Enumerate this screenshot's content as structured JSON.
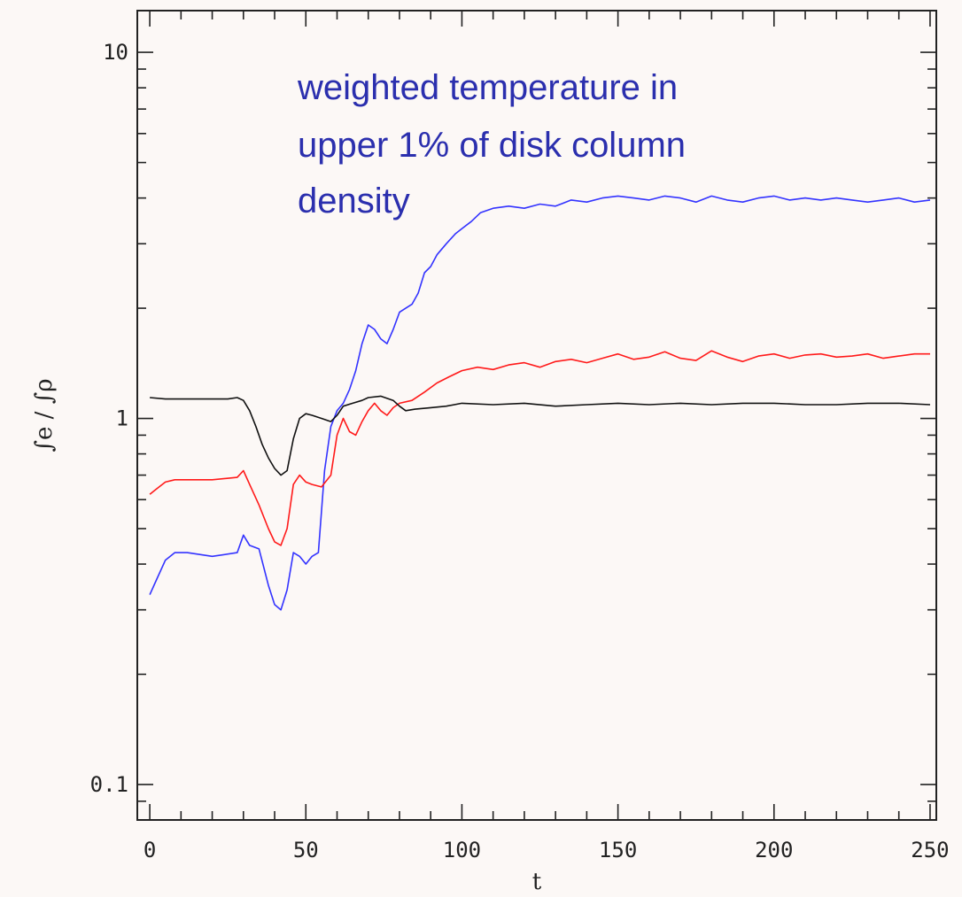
{
  "chart_data": {
    "type": "line",
    "title": "",
    "xlabel": "t",
    "ylabel": "∫e / ∫ρ",
    "xlim": [
      -4,
      252
    ],
    "ylim": [
      0.08,
      13
    ],
    "yscale": "log",
    "x_ticks": [
      0,
      50,
      100,
      150,
      200,
      250
    ],
    "x_tick_labels": [
      "0",
      "50",
      "100",
      "150",
      "200",
      "250"
    ],
    "y_ticks": [
      0.1,
      1,
      10
    ],
    "y_tick_labels": [
      "0.1",
      "1",
      "10"
    ],
    "grid": false,
    "annotation": [
      "weighted temperature in",
      "upper 1% of disk column",
      "density"
    ],
    "colors": {
      "blue": "#3333ff",
      "red": "#ff1a1a",
      "black": "#111111",
      "annotation": "#2b2fae",
      "background": "#fcf8f6"
    },
    "series": [
      {
        "color": "#3333ff",
        "x": [
          0,
          2,
          5,
          8,
          12,
          20,
          28,
          30,
          32,
          35,
          38,
          40,
          42,
          44,
          46,
          48,
          50,
          52,
          54,
          56,
          58,
          60,
          62,
          64,
          66,
          68,
          70,
          72,
          74,
          76,
          78,
          80,
          82,
          84,
          86,
          88,
          90,
          92,
          95,
          98,
          100,
          103,
          106,
          110,
          115,
          120,
          125,
          130,
          135,
          140,
          145,
          150,
          155,
          160,
          165,
          170,
          175,
          180,
          185,
          190,
          195,
          200,
          205,
          210,
          215,
          220,
          225,
          230,
          235,
          240,
          245,
          250
        ],
        "y": [
          0.33,
          0.36,
          0.41,
          0.43,
          0.43,
          0.42,
          0.43,
          0.48,
          0.45,
          0.44,
          0.35,
          0.31,
          0.3,
          0.34,
          0.43,
          0.42,
          0.4,
          0.42,
          0.43,
          0.72,
          0.95,
          1.05,
          1.1,
          1.2,
          1.35,
          1.6,
          1.8,
          1.75,
          1.65,
          1.6,
          1.75,
          1.95,
          2.0,
          2.05,
          2.2,
          2.5,
          2.6,
          2.8,
          3.0,
          3.2,
          3.3,
          3.45,
          3.65,
          3.75,
          3.8,
          3.75,
          3.85,
          3.8,
          3.95,
          3.9,
          4.0,
          4.05,
          4.0,
          3.95,
          4.05,
          4.0,
          3.9,
          4.05,
          3.95,
          3.9,
          4.0,
          4.05,
          3.95,
          4.0,
          3.95,
          4.0,
          3.95,
          3.9,
          3.95,
          4.0,
          3.9,
          3.95
        ]
      },
      {
        "color": "#ff1a1a",
        "x": [
          0,
          2,
          5,
          8,
          12,
          20,
          28,
          30,
          32,
          35,
          38,
          40,
          42,
          44,
          46,
          48,
          50,
          52,
          55,
          58,
          60,
          62,
          64,
          66,
          68,
          70,
          72,
          74,
          76,
          78,
          80,
          84,
          88,
          92,
          96,
          100,
          105,
          110,
          115,
          120,
          125,
          130,
          135,
          140,
          145,
          150,
          155,
          160,
          165,
          170,
          175,
          180,
          185,
          190,
          195,
          200,
          205,
          210,
          215,
          220,
          225,
          230,
          235,
          240,
          245,
          250
        ],
        "y": [
          0.62,
          0.64,
          0.67,
          0.68,
          0.68,
          0.68,
          0.69,
          0.72,
          0.66,
          0.58,
          0.5,
          0.46,
          0.45,
          0.5,
          0.66,
          0.7,
          0.67,
          0.66,
          0.65,
          0.7,
          0.9,
          1.0,
          0.92,
          0.9,
          0.98,
          1.05,
          1.1,
          1.05,
          1.02,
          1.07,
          1.1,
          1.12,
          1.18,
          1.25,
          1.3,
          1.35,
          1.38,
          1.36,
          1.4,
          1.42,
          1.38,
          1.43,
          1.45,
          1.42,
          1.46,
          1.5,
          1.45,
          1.47,
          1.52,
          1.46,
          1.44,
          1.53,
          1.47,
          1.43,
          1.48,
          1.5,
          1.46,
          1.49,
          1.5,
          1.47,
          1.48,
          1.5,
          1.46,
          1.48,
          1.5,
          1.5
        ]
      },
      {
        "color": "#111111",
        "x": [
          0,
          5,
          10,
          15,
          20,
          25,
          28,
          30,
          32,
          34,
          36,
          38,
          40,
          42,
          44,
          46,
          48,
          50,
          52,
          55,
          58,
          60,
          62,
          65,
          68,
          70,
          74,
          78,
          80,
          82,
          85,
          90,
          95,
          100,
          110,
          120,
          130,
          140,
          150,
          160,
          170,
          180,
          190,
          200,
          210,
          220,
          230,
          240,
          250
        ],
        "y": [
          1.14,
          1.13,
          1.13,
          1.13,
          1.13,
          1.13,
          1.14,
          1.12,
          1.05,
          0.95,
          0.85,
          0.78,
          0.73,
          0.7,
          0.72,
          0.88,
          1.0,
          1.03,
          1.02,
          1.0,
          0.98,
          1.02,
          1.08,
          1.1,
          1.12,
          1.14,
          1.15,
          1.12,
          1.08,
          1.05,
          1.06,
          1.07,
          1.08,
          1.1,
          1.09,
          1.1,
          1.08,
          1.09,
          1.1,
          1.09,
          1.1,
          1.09,
          1.1,
          1.1,
          1.09,
          1.09,
          1.1,
          1.1,
          1.09
        ]
      }
    ]
  }
}
